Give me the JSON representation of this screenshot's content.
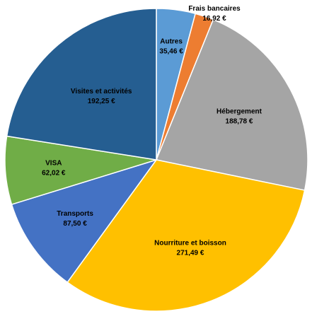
{
  "chart_data": {
    "type": "pie",
    "title": "",
    "start_angle_deg": 0,
    "direction": "clockwise",
    "legend": "none",
    "slices": [
      {
        "label": "Autres",
        "value": 35.46,
        "value_label": "35,46 €",
        "color": "#5B9BD5"
      },
      {
        "label": "Frais bancaires",
        "value": 16.92,
        "value_label": "16,92 €",
        "color": "#ED7D31"
      },
      {
        "label": "Hébergement",
        "value": 188.78,
        "value_label": "188,78 €",
        "color": "#A5A5A5"
      },
      {
        "label": "Nourriture et boisson",
        "value": 271.49,
        "value_label": "271,49 €",
        "color": "#FFC000"
      },
      {
        "label": "Transports",
        "value": 87.5,
        "value_label": "87,50 €",
        "color": "#4472C4"
      },
      {
        "label": "VISA",
        "value": 62.02,
        "value_label": "62,02 €",
        "color": "#70AD47"
      },
      {
        "label": "Visites et activités",
        "value": 192.25,
        "value_label": "192,25 €",
        "color": "#255E91"
      }
    ]
  }
}
